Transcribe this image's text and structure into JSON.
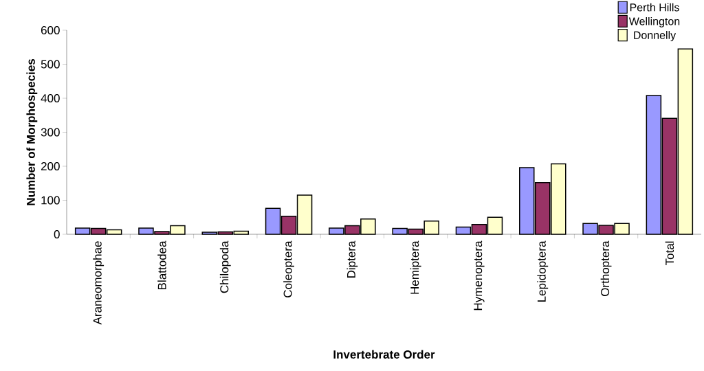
{
  "chart_data": {
    "type": "bar",
    "xlabel": "Invertebrate Order",
    "ylabel": "Number of Morphospecies",
    "categories": [
      "Araneomorphae",
      "Blattodea",
      "Chilopoda",
      "Coleoptera",
      "Diptera",
      "Hemiptera",
      "Hymenoptera",
      "Lepidoptera",
      "Orthoptera",
      "Total"
    ],
    "series": [
      {
        "name": "Perth Hills",
        "color": "#9999ff",
        "values": [
          18,
          18,
          6,
          76,
          18,
          17,
          21,
          196,
          32,
          408
        ]
      },
      {
        "name": "Wellington",
        "color": "#993366",
        "values": [
          17,
          8,
          7,
          53,
          25,
          15,
          29,
          152,
          26,
          341
        ]
      },
      {
        "name": "Donnelly",
        "color": "#ffffcc",
        "values": [
          13,
          25,
          9,
          115,
          45,
          39,
          50,
          207,
          32,
          545
        ]
      }
    ],
    "ylim": [
      0,
      600
    ],
    "yticks": [
      0,
      100,
      200,
      300,
      400,
      500,
      600
    ],
    "grid": false,
    "legend": "top right"
  }
}
